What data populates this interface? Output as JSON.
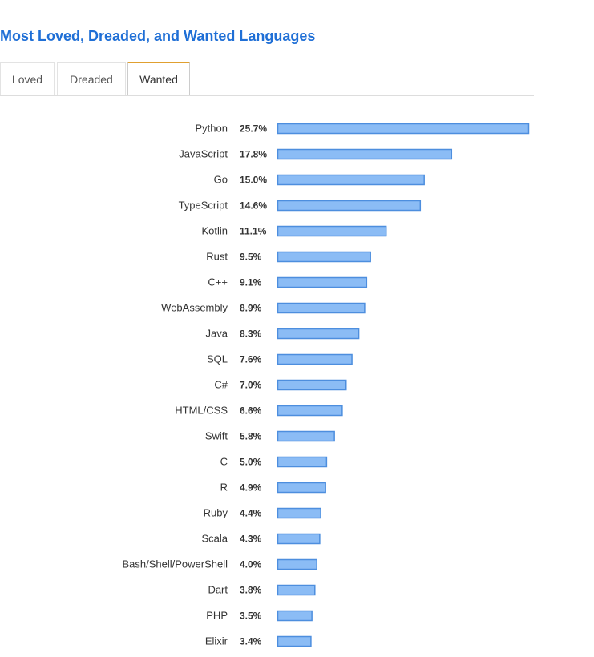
{
  "title": "Most Loved, Dreaded, and Wanted Languages",
  "tabs": [
    {
      "label": "Loved",
      "active": false
    },
    {
      "label": "Dreaded",
      "active": false
    },
    {
      "label": "Wanted",
      "active": true
    }
  ],
  "colors": {
    "title": "#1f6fd6",
    "bar_fill": "#8bbcf5",
    "bar_stroke": "#4d8ede",
    "tab_accent": "#e0a030"
  },
  "chart_data": {
    "type": "bar",
    "orientation": "horizontal",
    "categories": [
      "Python",
      "JavaScript",
      "Go",
      "TypeScript",
      "Kotlin",
      "Rust",
      "C++",
      "WebAssembly",
      "Java",
      "SQL",
      "C#",
      "HTML/CSS",
      "Swift",
      "C",
      "R",
      "Ruby",
      "Scala",
      "Bash/Shell/PowerShell",
      "Dart",
      "PHP",
      "Elixir"
    ],
    "values": [
      25.7,
      17.8,
      15.0,
      14.6,
      11.1,
      9.5,
      9.1,
      8.9,
      8.3,
      7.6,
      7.0,
      6.6,
      5.8,
      5.0,
      4.9,
      4.4,
      4.3,
      4.0,
      3.8,
      3.5,
      3.4
    ],
    "value_labels": [
      "25.7%",
      "17.8%",
      "15.0%",
      "14.6%",
      "11.1%",
      "9.5%",
      "9.1%",
      "8.9%",
      "8.3%",
      "7.6%",
      "7.0%",
      "6.6%",
      "5.8%",
      "5.0%",
      "4.9%",
      "4.4%",
      "4.3%",
      "4.0%",
      "3.8%",
      "3.5%",
      "3.4%"
    ],
    "xlim": [
      0,
      25.7
    ],
    "grid": false,
    "legend": "none"
  }
}
